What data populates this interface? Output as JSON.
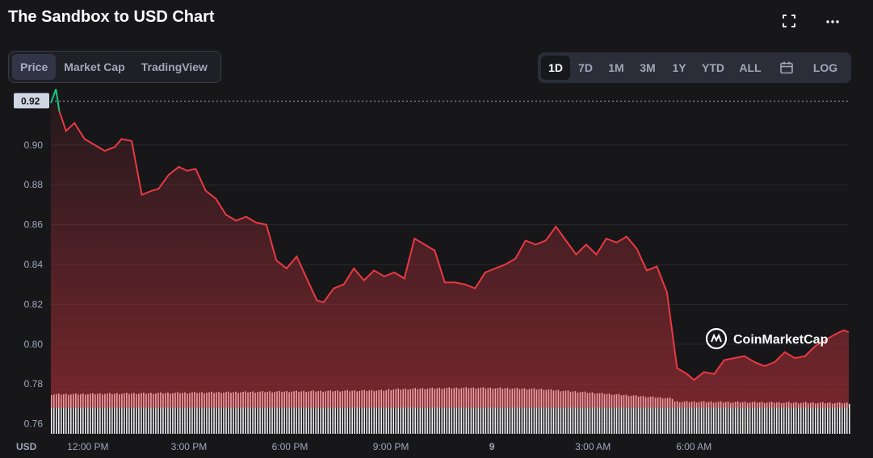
{
  "header": {
    "title": "The Sandbox to USD Chart",
    "fullscreen_icon": "fullscreen-icon",
    "more_icon": "more-icon"
  },
  "view_tabs": [
    {
      "label": "Price",
      "active": true
    },
    {
      "label": "Market Cap",
      "active": false
    },
    {
      "label": "TradingView",
      "active": false
    }
  ],
  "range_tabs": [
    {
      "label": "1D",
      "active": true
    },
    {
      "label": "7D",
      "active": false
    },
    {
      "label": "1M",
      "active": false
    },
    {
      "label": "3M",
      "active": false
    },
    {
      "label": "1Y",
      "active": false
    },
    {
      "label": "YTD",
      "active": false
    },
    {
      "label": "ALL",
      "active": false
    }
  ],
  "calendar_icon": "calendar-icon",
  "log_label": "LOG",
  "watermark": "CoinMarketCap",
  "colors": {
    "line_down": "#ea3943",
    "line_up": "#16c784",
    "background": "#17171a",
    "volume": "#ffffff"
  },
  "chart_data": {
    "type": "line",
    "title": "The Sandbox to USD Chart",
    "ylabel": "USD",
    "ylim": [
      0.755,
      0.925
    ],
    "y_ticks": [
      "0.76",
      "0.78",
      "0.80",
      "0.82",
      "0.84",
      "0.86",
      "0.88",
      "0.90"
    ],
    "current_price_label": "0.92",
    "reference_price": 0.922,
    "x_ticks": [
      "12:00 PM",
      "3:00 PM",
      "6:00 PM",
      "9:00 PM",
      "9",
      "3:00 AM",
      "6:00 AM"
    ],
    "x_tick_hours": [
      12,
      15,
      18,
      21,
      24,
      27,
      30
    ],
    "x_range_hours": [
      10.9,
      34.6
    ],
    "series": [
      {
        "x": [
          10.9,
          11.05,
          11.15,
          11.35,
          11.6,
          11.9,
          12.2,
          12.5,
          12.8,
          13.0,
          13.3,
          13.6,
          13.9,
          14.1,
          14.4,
          14.7,
          14.95,
          15.2,
          15.5,
          15.8,
          16.1,
          16.4,
          16.7,
          17.0,
          17.3,
          17.6,
          17.9,
          18.2,
          18.5,
          18.8,
          19.0,
          19.3,
          19.6,
          19.9,
          20.2,
          20.5,
          20.8,
          21.1,
          21.4,
          21.7,
          22.0,
          22.3,
          22.6,
          22.9,
          23.2,
          23.5,
          23.8,
          24.1,
          24.4,
          24.7,
          25.0,
          25.3,
          25.6,
          25.9,
          26.2,
          26.5,
          26.8,
          27.1,
          27.4,
          27.7,
          28.0,
          28.3,
          28.6,
          28.9,
          29.2,
          29.5,
          29.8,
          30.0,
          30.3,
          30.6,
          30.9,
          31.2,
          31.5,
          31.8,
          32.1,
          32.4,
          32.7,
          33.0,
          33.3,
          33.6,
          33.9,
          34.2,
          34.45,
          34.6
        ],
        "y": [
          0.921,
          0.928,
          0.917,
          0.907,
          0.911,
          0.903,
          0.9,
          0.897,
          0.899,
          0.903,
          0.902,
          0.875,
          0.877,
          0.878,
          0.885,
          0.889,
          0.887,
          0.888,
          0.877,
          0.873,
          0.865,
          0.862,
          0.864,
          0.861,
          0.86,
          0.842,
          0.838,
          0.844,
          0.833,
          0.822,
          0.821,
          0.828,
          0.83,
          0.838,
          0.832,
          0.837,
          0.834,
          0.836,
          0.833,
          0.853,
          0.85,
          0.847,
          0.831,
          0.831,
          0.83,
          0.828,
          0.836,
          0.838,
          0.84,
          0.843,
          0.852,
          0.85,
          0.852,
          0.859,
          0.852,
          0.845,
          0.85,
          0.845,
          0.853,
          0.851,
          0.854,
          0.848,
          0.837,
          0.839,
          0.826,
          0.788,
          0.785,
          0.782,
          0.786,
          0.785,
          0.792,
          0.793,
          0.794,
          0.791,
          0.789,
          0.791,
          0.796,
          0.793,
          0.794,
          0.799,
          0.802,
          0.805,
          0.807,
          0.806
        ]
      }
    ],
    "grid": true,
    "volume_bars": true
  }
}
